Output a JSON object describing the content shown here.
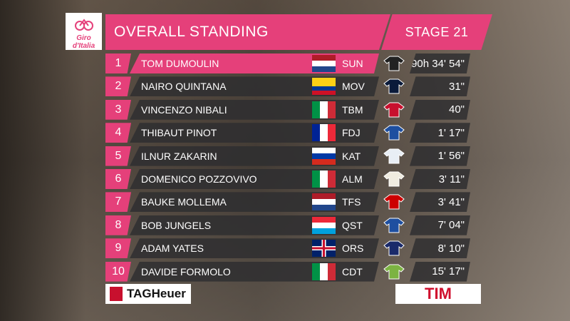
{
  "header": {
    "logo": "Giro d'Italia",
    "title": "OVERALL STANDING",
    "stage": "STAGE 21"
  },
  "standings": [
    {
      "rank": 1,
      "name": "TOM DUMOULIN",
      "team": "SUN",
      "time": "90h 34' 54\""
    },
    {
      "rank": 2,
      "name": "NAIRO QUINTANA",
      "team": "MOV",
      "time": "31\""
    },
    {
      "rank": 3,
      "name": "VINCENZO NIBALI",
      "team": "TBM",
      "time": "40\""
    },
    {
      "rank": 4,
      "name": "THIBAUT PINOT",
      "team": "FDJ",
      "time": "1' 17\""
    },
    {
      "rank": 5,
      "name": "ILNUR ZAKARIN",
      "team": "KAT",
      "time": "1' 56\""
    },
    {
      "rank": 6,
      "name": "DOMENICO POZZOVIVO",
      "team": "ALM",
      "time": "3' 11\""
    },
    {
      "rank": 7,
      "name": "BAUKE MOLLEMA",
      "team": "TFS",
      "time": "3' 41\""
    },
    {
      "rank": 8,
      "name": "BOB JUNGELS",
      "team": "QST",
      "time": "7' 04\""
    },
    {
      "rank": 9,
      "name": "ADAM YATES",
      "team": "ORS",
      "time": "8' 10\""
    },
    {
      "rank": 10,
      "name": "DAVIDE FORMOLO",
      "team": "CDT",
      "time": "15' 17\""
    }
  ],
  "sponsors": [
    "TAGHeuer",
    "TIM"
  ]
}
